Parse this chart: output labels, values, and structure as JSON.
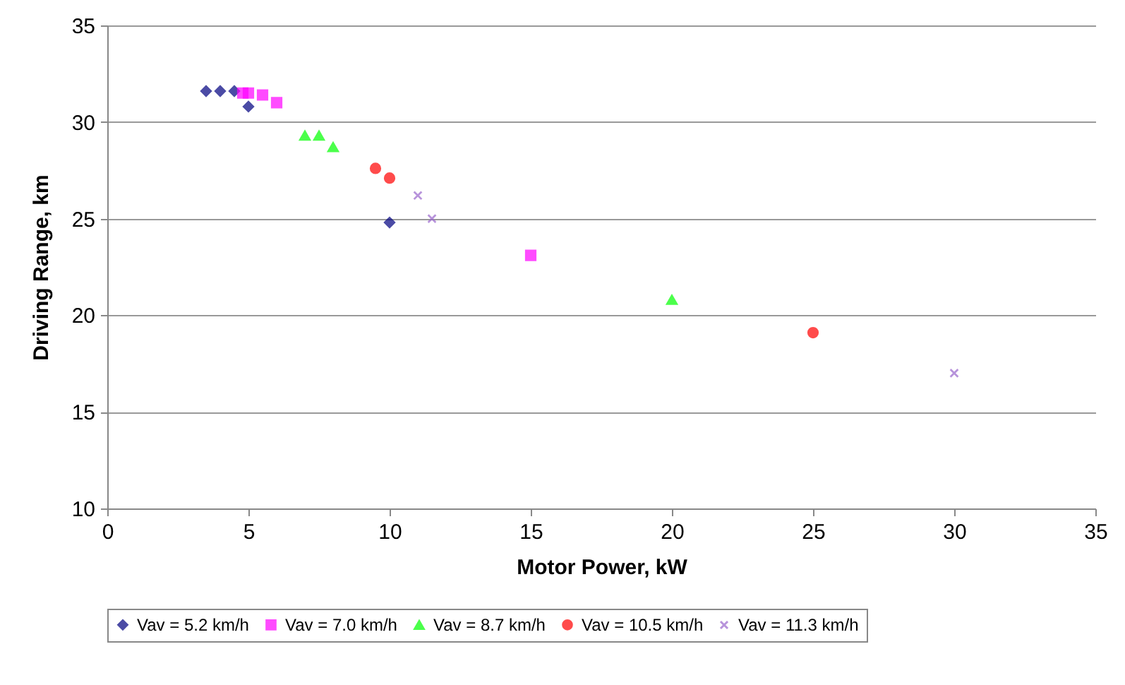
{
  "chart_data": {
    "type": "scatter",
    "xlabel": "Motor Power, kW",
    "ylabel": "Driving Range, km",
    "xlim": [
      0,
      35
    ],
    "xticks": [
      0,
      5,
      10,
      15,
      20,
      25,
      30,
      35
    ],
    "ylim": [
      10,
      35
    ],
    "yticks": [
      10,
      15,
      20,
      25,
      30,
      35
    ],
    "grid": "y",
    "legend": "bottom",
    "series": [
      {
        "name": "Vav = 5.2 km/h",
        "color": "#000080",
        "marker": "diamond",
        "x": [
          3.5,
          4,
          4.5,
          5,
          10
        ],
        "values": [
          31.6,
          31.6,
          31.6,
          30.8,
          24.8
        ]
      },
      {
        "name": "Vav = 7.0 km/h",
        "color": "#ff00ff",
        "marker": "square",
        "x": [
          4.8,
          5,
          5.5,
          6,
          15
        ],
        "values": [
          31.5,
          31.5,
          31.4,
          31.0,
          23.1
        ]
      },
      {
        "name": "Vav = 8.7 km/h",
        "color": "#00ff00",
        "marker": "triangle",
        "x": [
          7,
          7.5,
          8,
          20
        ],
        "values": [
          29.3,
          29.3,
          28.7,
          20.8
        ]
      },
      {
        "name": "Vav = 10.5 km/h",
        "color": "#ff0000",
        "marker": "circle",
        "x": [
          9.5,
          10,
          25
        ],
        "values": [
          27.6,
          27.1,
          19.1
        ]
      },
      {
        "name": "Vav = 11.3 km/h",
        "color": "#9966cc",
        "marker": "cross",
        "x": [
          11,
          11.5,
          30
        ],
        "values": [
          26.2,
          25.0,
          17.0
        ]
      }
    ]
  }
}
